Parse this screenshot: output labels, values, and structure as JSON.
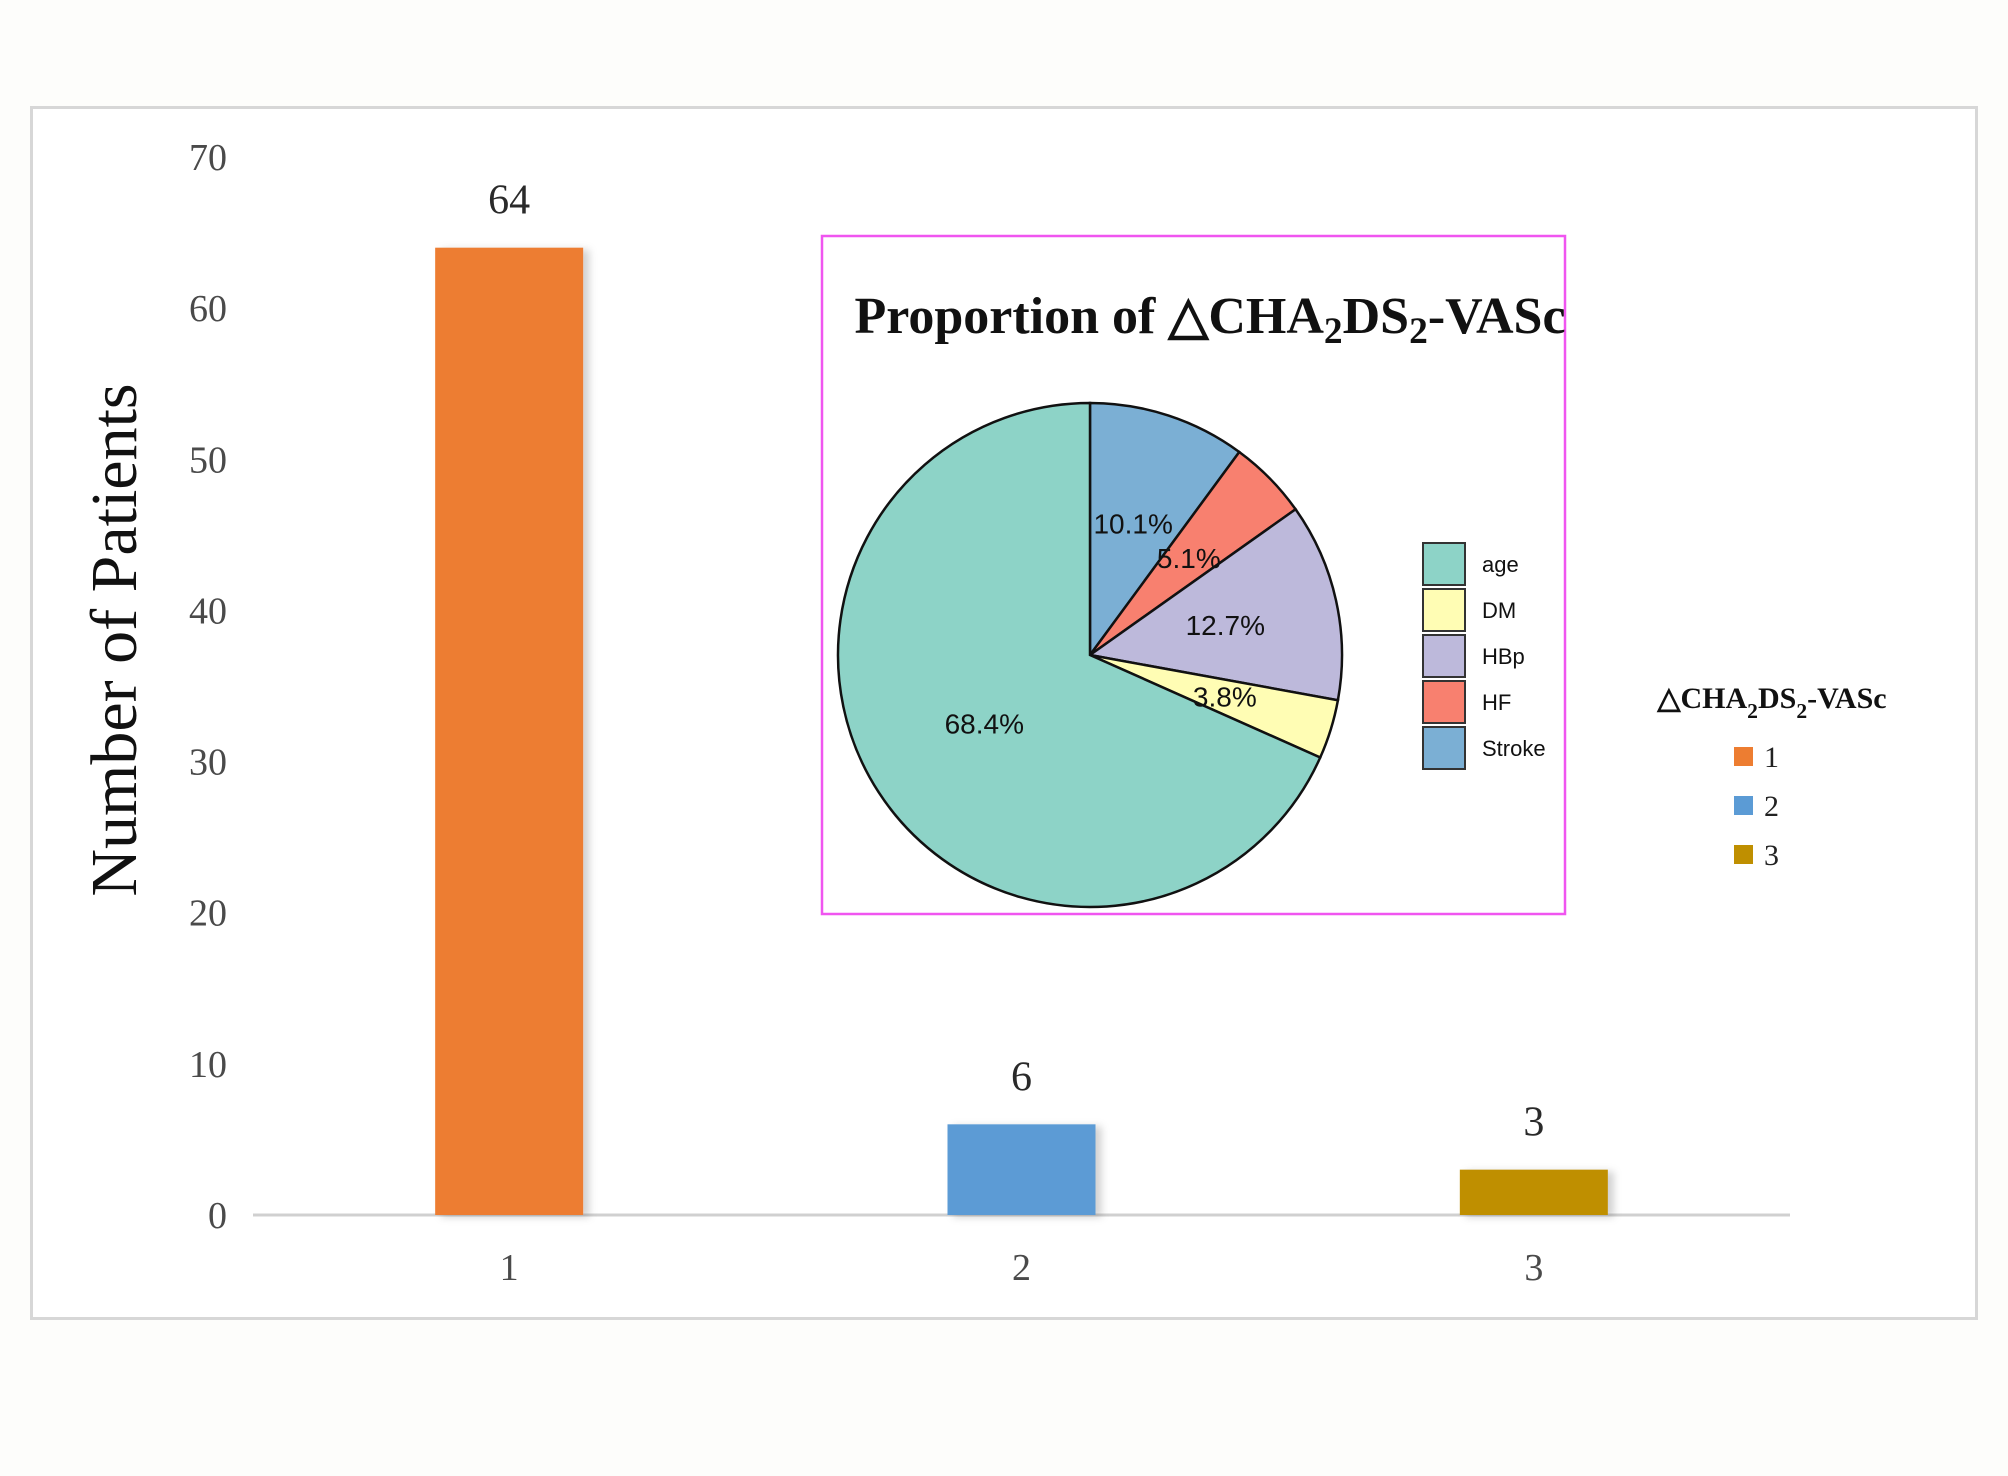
{
  "chart_data": [
    {
      "type": "bar",
      "ylabel": "Number of Patients",
      "categories": [
        "1",
        "2",
        "3"
      ],
      "values": [
        64,
        6,
        3
      ],
      "colors": [
        "#ED7D31",
        "#5B9BD5",
        "#BF8F00"
      ],
      "ylim": [
        0,
        70
      ],
      "yticks": [
        0,
        10,
        20,
        30,
        40,
        50,
        60,
        70
      ],
      "grid": false,
      "legend": {
        "title_prefix": "△CHA",
        "title_sub1": "2",
        "title_mid": "DS",
        "title_sub2": "2",
        "title_suffix": "-VASc",
        "placement": "right",
        "entries": [
          "1",
          "2",
          "3"
        ]
      }
    },
    {
      "type": "pie",
      "title_prefix": "Proportion of  △CHA",
      "title_sub1": "2",
      "title_mid": "DS",
      "title_sub2": "2",
      "title_suffix": "-VASc",
      "slices": [
        {
          "name": "Stroke",
          "value": 10.1,
          "label": "10.1%",
          "color": "#7BAFD4"
        },
        {
          "name": "HF",
          "value": 5.1,
          "label": "5.1%",
          "color": "#F8806F"
        },
        {
          "name": "HBp",
          "value": 12.7,
          "label": "12.7%",
          "color": "#BDB9DB"
        },
        {
          "name": "DM",
          "value": 3.8,
          "label": "3.8%",
          "color": "#FFFDB4"
        },
        {
          "name": "age",
          "value": 68.4,
          "label": "68.4%",
          "color": "#8DD3C7"
        }
      ],
      "legend_order": [
        "age",
        "DM",
        "HBp",
        "HF",
        "Stroke"
      ],
      "legend_placement": "right",
      "inset_border_color": "#F055F0"
    }
  ]
}
